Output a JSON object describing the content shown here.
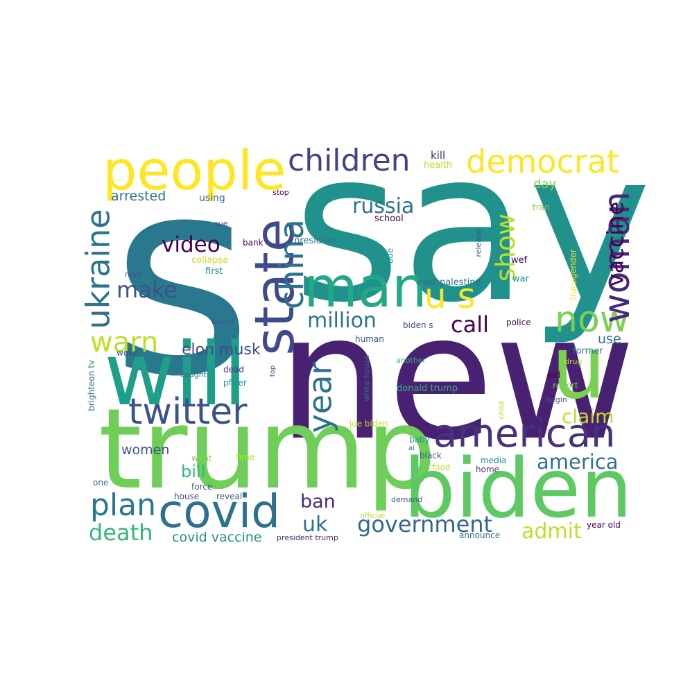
{
  "palette": {
    "background": "#ffffff",
    "teal": "#21918c",
    "dark_purple": "#440154",
    "indigo": "#482878",
    "purple": "#46327e",
    "blue": "#3b528b",
    "slate": "#31688e",
    "steel": "#2c728e",
    "green_teal": "#1f9e89",
    "sea": "#22a884",
    "green": "#35b779",
    "light_green": "#5ec962",
    "lime": "#7ad151",
    "yellow_green": "#bddf26",
    "yellow": "#fde725"
  },
  "words": [
    {
      "id": "say",
      "text": "say"
    },
    {
      "id": "s",
      "text": "s"
    },
    {
      "id": "new",
      "text": "new"
    },
    {
      "id": "trump",
      "text": "trump"
    },
    {
      "id": "biden",
      "text": "biden"
    },
    {
      "id": "will",
      "text": "will"
    },
    {
      "id": "u",
      "text": "u"
    },
    {
      "id": "people",
      "text": "people"
    },
    {
      "id": "man",
      "text": "man"
    },
    {
      "id": "state",
      "text": "state"
    },
    {
      "id": "covid",
      "text": "covid"
    },
    {
      "id": "american",
      "text": "american"
    },
    {
      "id": "children",
      "text": "children"
    },
    {
      "id": "democrat",
      "text": "democrat"
    },
    {
      "id": "twitter",
      "text": "twitter"
    },
    {
      "id": "now",
      "text": "now"
    },
    {
      "id": "woman",
      "text": "woman"
    },
    {
      "id": "ukraine",
      "text": "ukraine"
    },
    {
      "id": "china",
      "text": "china"
    },
    {
      "id": "year",
      "text": "year"
    },
    {
      "id": "u_s",
      "text": "u s"
    },
    {
      "id": "show",
      "text": "show"
    },
    {
      "id": "plan",
      "text": "plan"
    },
    {
      "id": "vaccine",
      "text": "vaccine"
    },
    {
      "id": "warn",
      "text": "warn"
    },
    {
      "id": "russia",
      "text": "russia"
    },
    {
      "id": "government",
      "text": "government"
    },
    {
      "id": "million",
      "text": "million"
    },
    {
      "id": "america",
      "text": "america"
    },
    {
      "id": "video",
      "text": "video"
    },
    {
      "id": "make",
      "text": "make"
    },
    {
      "id": "death",
      "text": "death"
    },
    {
      "id": "admit",
      "text": "admit"
    },
    {
      "id": "claim",
      "text": "claim"
    },
    {
      "id": "call",
      "text": "call"
    },
    {
      "id": "elon_musk",
      "text": "elon musk"
    },
    {
      "id": "uk",
      "text": "uk"
    },
    {
      "id": "ban",
      "text": "ban"
    },
    {
      "id": "bill",
      "text": "bill"
    },
    {
      "id": "covid_vaccine",
      "text": "covid vaccine"
    },
    {
      "id": "arrested",
      "text": "arrested"
    },
    {
      "id": "women",
      "text": "women"
    },
    {
      "id": "use",
      "text": "use"
    },
    {
      "id": "day",
      "text": "day"
    },
    {
      "id": "kill",
      "text": "kill"
    },
    {
      "id": "health",
      "text": "health"
    },
    {
      "id": "using",
      "text": "using"
    },
    {
      "id": "stop",
      "text": "stop"
    },
    {
      "id": "tran",
      "text": "tran"
    },
    {
      "id": "sue",
      "text": "sue"
    },
    {
      "id": "school",
      "text": "school"
    },
    {
      "id": "president",
      "text": "president"
    },
    {
      "id": "bank",
      "text": "bank"
    },
    {
      "id": "release",
      "text": "release"
    },
    {
      "id": "collapse",
      "text": "collapse"
    },
    {
      "id": "first",
      "text": "first"
    },
    {
      "id": "due",
      "text": "due"
    },
    {
      "id": "wef",
      "text": "wef"
    },
    {
      "id": "may",
      "text": "may"
    },
    {
      "id": "east_palestine",
      "text": "east palestine"
    },
    {
      "id": "war",
      "text": "war"
    },
    {
      "id": "transgender",
      "text": "transgender"
    },
    {
      "id": "texas",
      "text": "texas"
    },
    {
      "id": "found",
      "text": "found"
    },
    {
      "id": "biden_s",
      "text": "biden s"
    },
    {
      "id": "police",
      "text": "police"
    },
    {
      "id": "human",
      "text": "human"
    },
    {
      "id": "woke",
      "text": "woke"
    },
    {
      "id": "dead",
      "text": "dead"
    },
    {
      "id": "former",
      "text": "former"
    },
    {
      "id": "another",
      "text": "another"
    },
    {
      "id": "brighteon_tv",
      "text": "brighteon tv"
    },
    {
      "id": "caught",
      "text": "caught"
    },
    {
      "id": "pfizer",
      "text": "pfizer"
    },
    {
      "id": "top",
      "text": "top"
    },
    {
      "id": "white_house",
      "text": "white house"
    },
    {
      "id": "drug",
      "text": "drug"
    },
    {
      "id": "kid",
      "text": "kid"
    },
    {
      "id": "donald_trump",
      "text": "donald trump"
    },
    {
      "id": "report",
      "text": "report"
    },
    {
      "id": "begin",
      "text": "begin"
    },
    {
      "id": "child",
      "text": "child"
    },
    {
      "id": "joe_biden",
      "text": "joe biden"
    },
    {
      "id": "baby",
      "text": "baby"
    },
    {
      "id": "ai",
      "text": "ai"
    },
    {
      "id": "black",
      "text": "black"
    },
    {
      "id": "want",
      "text": "want"
    },
    {
      "id": "time",
      "text": "time"
    },
    {
      "id": "media",
      "text": "media"
    },
    {
      "id": "food",
      "text": "food"
    },
    {
      "id": "home",
      "text": "home"
    },
    {
      "id": "one",
      "text": "one"
    },
    {
      "id": "force",
      "text": "force"
    },
    {
      "id": "house",
      "text": "house"
    },
    {
      "id": "reveal",
      "text": "reveal"
    },
    {
      "id": "demand",
      "text": "demand"
    },
    {
      "id": "official",
      "text": "official"
    },
    {
      "id": "year_old",
      "text": "year old"
    },
    {
      "id": "president_trump",
      "text": "president trump"
    },
    {
      "id": "announce",
      "text": "announce"
    }
  ]
}
